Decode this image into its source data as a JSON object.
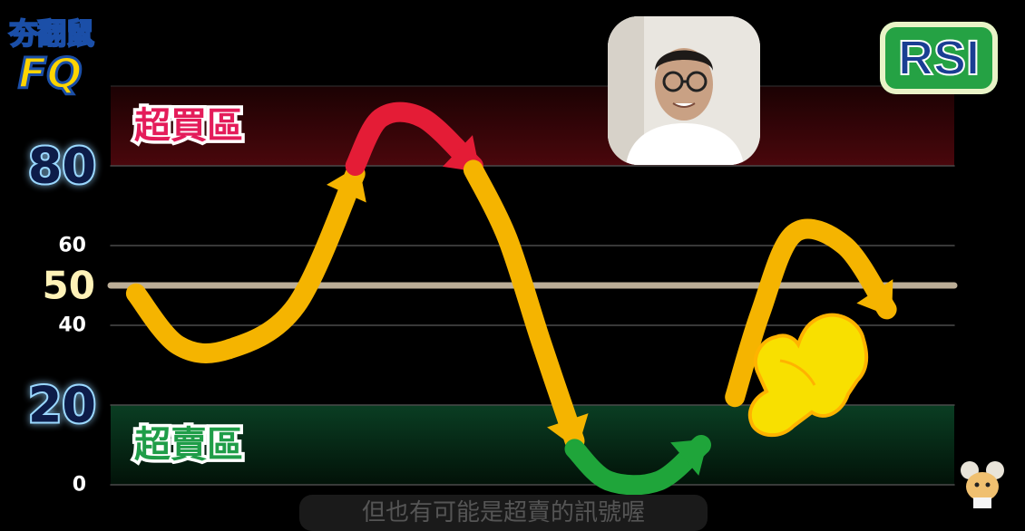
{
  "channel_logo": {
    "line1": "夯翻鼠",
    "line2": "FQ"
  },
  "badge": {
    "label": "RSI"
  },
  "subtitle": {
    "text": "但也有可能是超賣的訊號喔"
  },
  "chart_data": {
    "type": "line",
    "indicator": "RSI",
    "ylim": [
      0,
      100
    ],
    "y_ticks": [
      {
        "value": 0,
        "label": "0"
      },
      {
        "value": 20,
        "label": "20"
      },
      {
        "value": 40,
        "label": "40"
      },
      {
        "value": 50,
        "label": "50"
      },
      {
        "value": 60,
        "label": "60"
      },
      {
        "value": 80,
        "label": "80"
      }
    ],
    "zones": [
      {
        "label": "超買區",
        "from": 80,
        "to": 100,
        "color": "#3a0509"
      },
      {
        "label": "超賣區",
        "from": 0,
        "to": 20,
        "color": "#06301c"
      }
    ],
    "midline": {
      "value": 50,
      "color": "#bcae97"
    },
    "x_domain": [
      0,
      100
    ],
    "segments": [
      {
        "color": "#f5b400",
        "points": [
          [
            3,
            48
          ],
          [
            8,
            35
          ],
          [
            14,
            34
          ],
          [
            22,
            45
          ],
          [
            29,
            78
          ]
        ]
      },
      {
        "color": "#e41c36",
        "points": [
          [
            29,
            80
          ],
          [
            32,
            92
          ],
          [
            37,
            92
          ],
          [
            43,
            80
          ]
        ]
      },
      {
        "color": "#f5b400",
        "points": [
          [
            43,
            79
          ],
          [
            47,
            62
          ],
          [
            51,
            36
          ],
          [
            55,
            11
          ]
        ]
      },
      {
        "color": "#1fa53a",
        "points": [
          [
            55,
            9
          ],
          [
            59,
            1
          ],
          [
            65,
            1
          ],
          [
            70,
            10
          ]
        ]
      },
      {
        "color": "#f5b400",
        "points": [
          [
            74,
            22
          ],
          [
            77,
            43
          ],
          [
            81,
            63
          ],
          [
            87,
            60
          ],
          [
            92,
            44
          ]
        ]
      }
    ],
    "annotation": "pointing-hand-icon"
  }
}
